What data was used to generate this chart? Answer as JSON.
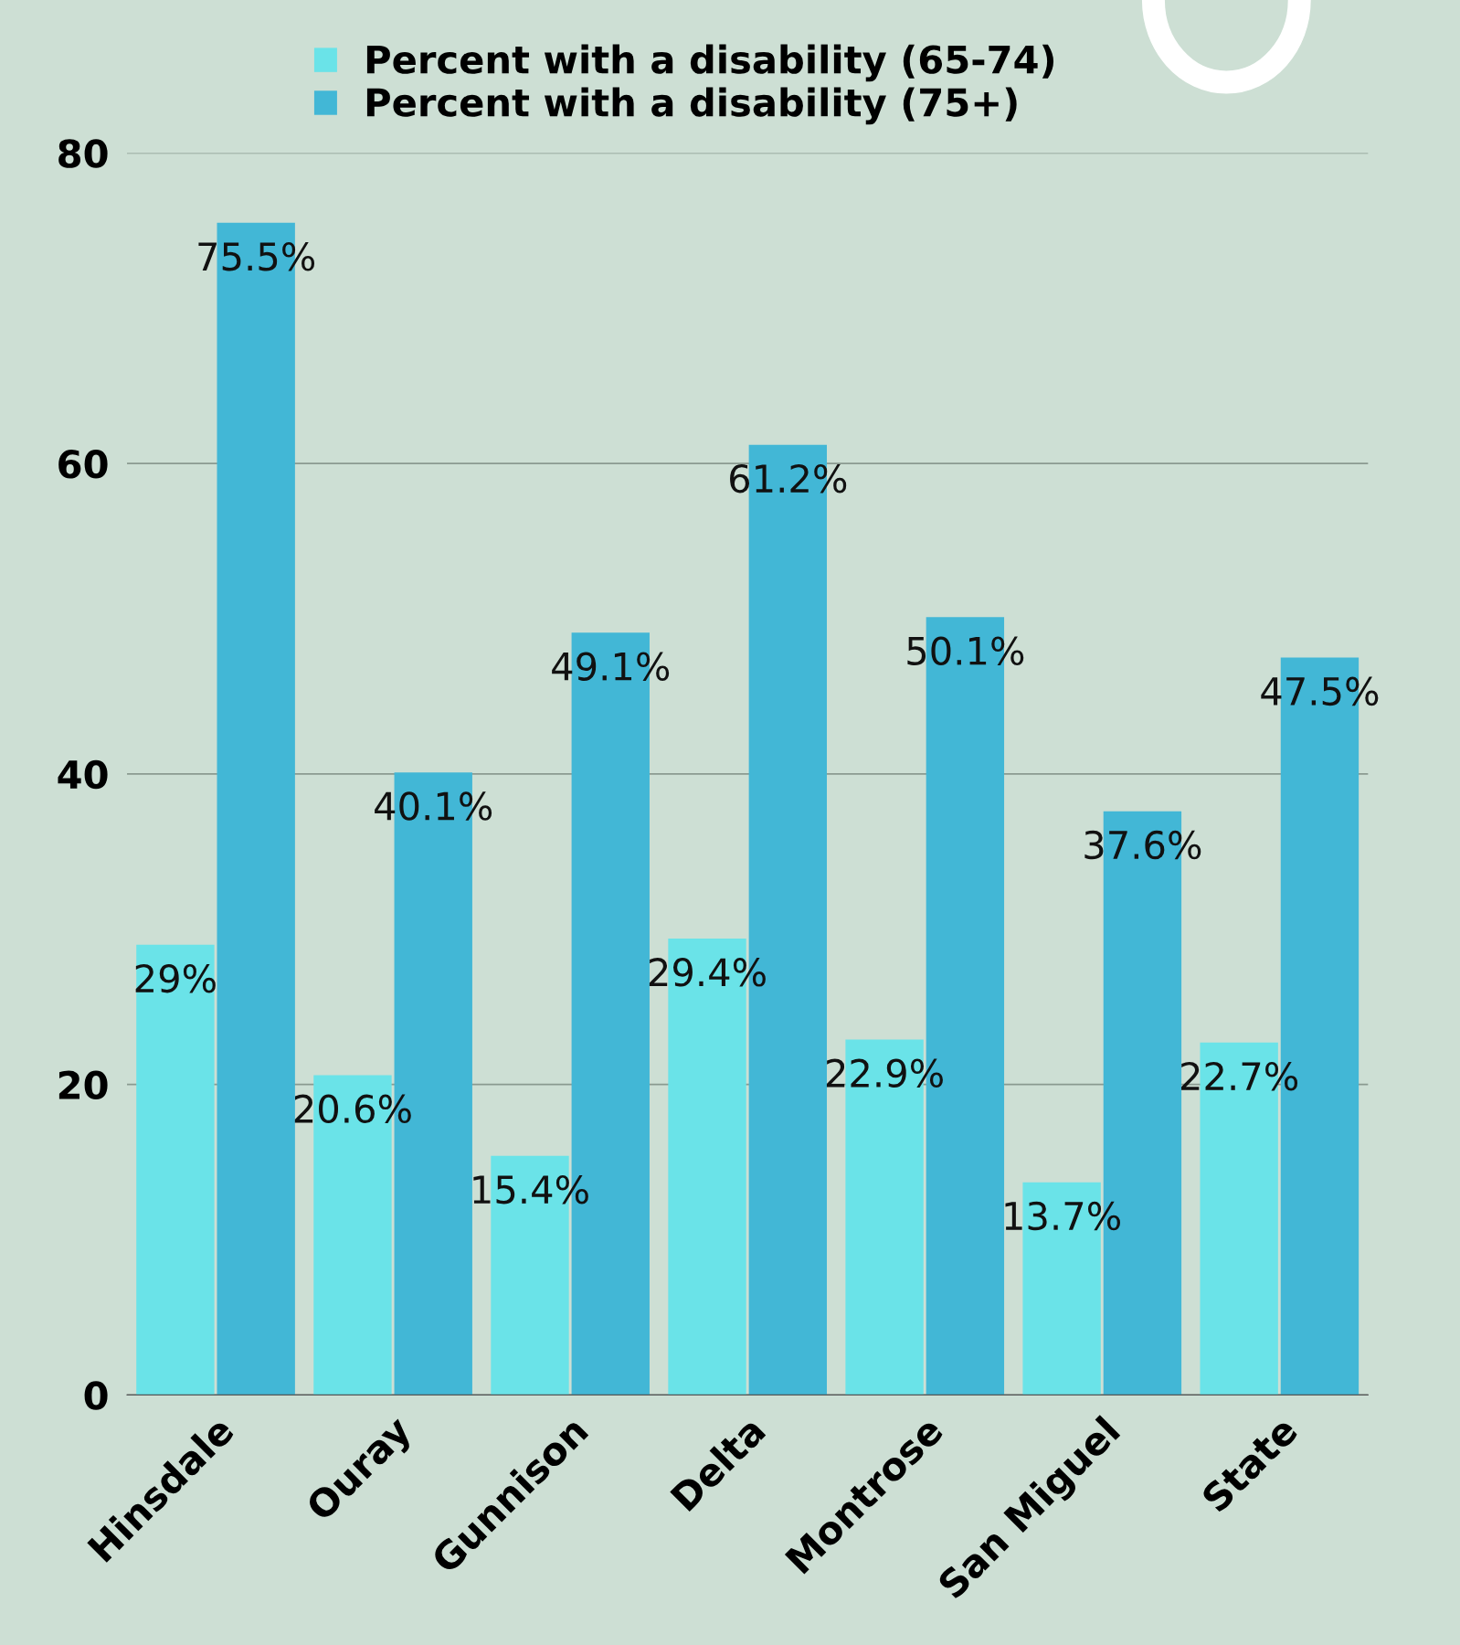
{
  "chart_data": {
    "type": "bar",
    "categories": [
      "Hinsdale",
      "Ouray",
      "Gunnison",
      "Delta",
      "Montrose",
      "San Miguel",
      "State"
    ],
    "series": [
      {
        "name": "Percent with a disability (65-74)",
        "color": "#6ae3e8",
        "values": [
          29,
          20.6,
          15.4,
          29.4,
          22.9,
          13.7,
          22.7
        ],
        "value_labels": [
          "29%",
          "20.6%",
          "15.4%",
          "29.4%",
          "22.9%",
          "13.7%",
          "22.7%"
        ]
      },
      {
        "name": "Percent with a disability (75+)",
        "color": "#42b7d6",
        "values": [
          75.5,
          40.1,
          49.1,
          61.2,
          50.1,
          37.6,
          47.5
        ],
        "value_labels": [
          "75.5%",
          "40.1%",
          "49.1%",
          "61.2%",
          "50.1%",
          "37.6%",
          "47.5%"
        ]
      }
    ],
    "ylim": [
      0,
      80
    ],
    "yticks": [
      0,
      20,
      40,
      60,
      80
    ],
    "grid": "y",
    "legend": "top"
  }
}
